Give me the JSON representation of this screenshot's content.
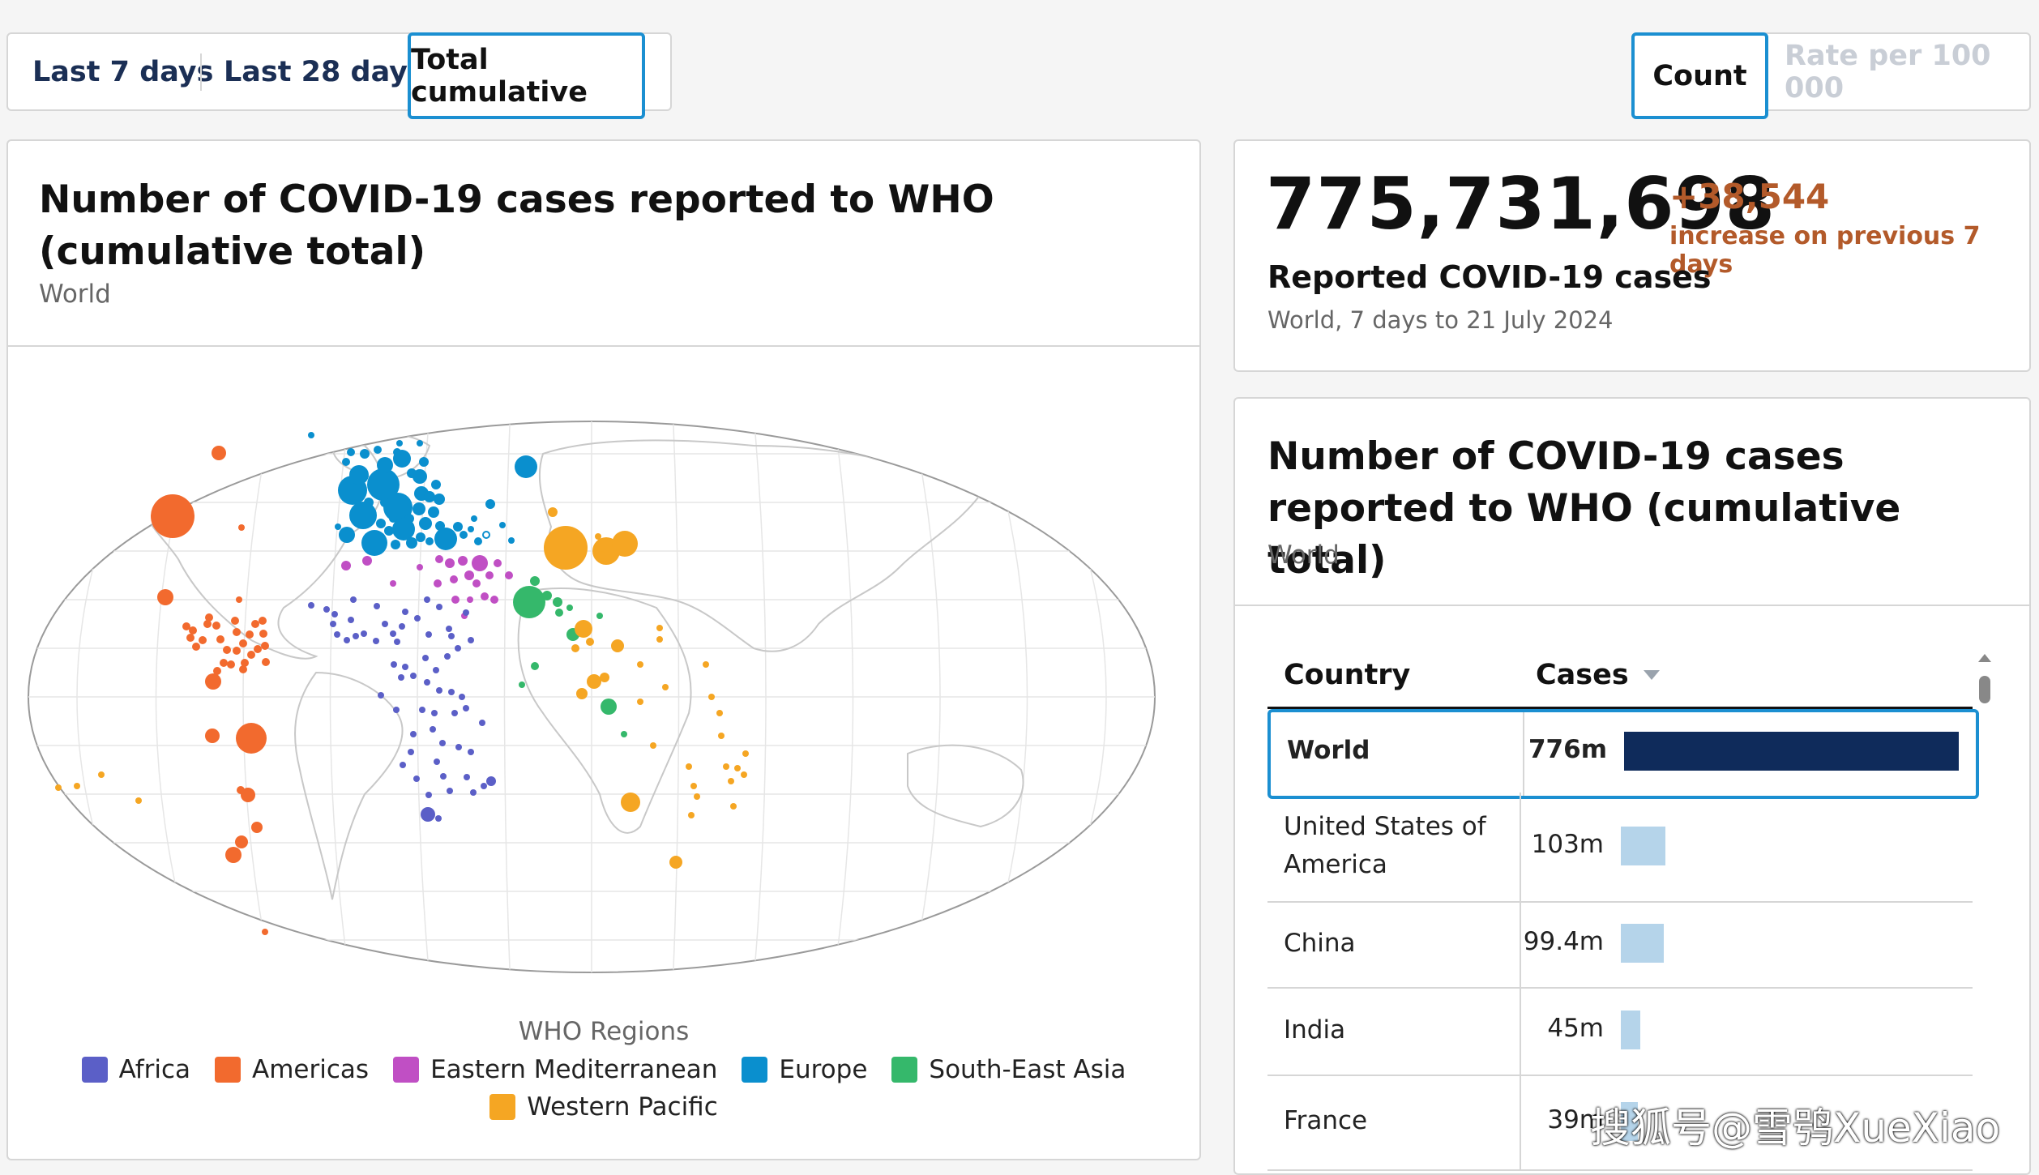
{
  "time_tabs": [
    {
      "label": "Last 7 days",
      "selected": false
    },
    {
      "label": "Last 28 days",
      "selected": false
    },
    {
      "label": "Total cumulative",
      "selected": true
    }
  ],
  "metric_tabs": [
    {
      "label": "Count",
      "selected": true
    },
    {
      "label": "Rate per 100 000",
      "selected": false
    }
  ],
  "map_card": {
    "title": "Number of COVID-19 cases reported to WHO (cumulative total)",
    "subtitle": "World",
    "legend": {
      "title": "WHO Regions",
      "items": [
        {
          "label": "Africa",
          "color": "#5b5fc7"
        },
        {
          "label": "Americas",
          "color": "#f26a2e"
        },
        {
          "label": "Eastern Mediterranean",
          "color": "#c04fc4"
        },
        {
          "label": "Europe",
          "color": "#0a8fce"
        },
        {
          "label": "South-East Asia",
          "color": "#35b86b"
        },
        {
          "label": "Western Pacific",
          "color": "#f5a623"
        }
      ]
    }
  },
  "kpi": {
    "value": "775,731,698",
    "delta": "+38,544",
    "delta_label": "increase on previous 7 days",
    "label": "Reported COVID-19 cases",
    "sub": "World, 7 days to 21 July 2024"
  },
  "table_card": {
    "title": "Number of COVID-19 cases reported to WHO (cumulative total)",
    "subtitle": "World",
    "col_country": "Country",
    "col_cases": "Cases",
    "rows": [
      {
        "country": "World",
        "cases": "776m",
        "value_m": 776,
        "selected": true
      },
      {
        "country": "United States of America",
        "cases": "103m",
        "value_m": 103,
        "selected": false
      },
      {
        "country": "China",
        "cases": "99.4m",
        "value_m": 99.4,
        "selected": false
      },
      {
        "country": "India",
        "cases": "45m",
        "value_m": 45,
        "selected": false
      },
      {
        "country": "France",
        "cases": "39m",
        "value_m": 39,
        "selected": false
      }
    ],
    "bar_color_selected": "#0f2b5b",
    "bar_color": "#b5d4ea"
  },
  "watermark": "搜狐号@雪鸮XueXiao"
}
